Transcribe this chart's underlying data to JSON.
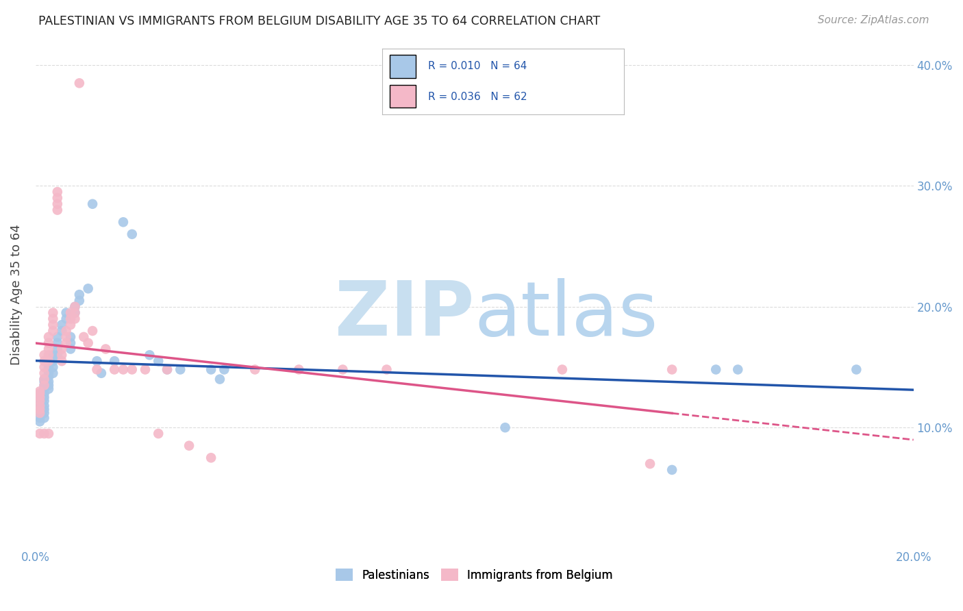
{
  "title": "PALESTINIAN VS IMMIGRANTS FROM BELGIUM DISABILITY AGE 35 TO 64 CORRELATION CHART",
  "source": "Source: ZipAtlas.com",
  "ylabel": "Disability Age 35 to 64",
  "xlim": [
    0.0,
    0.2
  ],
  "ylim": [
    0.0,
    0.42
  ],
  "xtick_vals": [
    0.0,
    0.05,
    0.1,
    0.15,
    0.2
  ],
  "xtick_labels": [
    "0.0%",
    "",
    "",
    "",
    "20.0%"
  ],
  "ytick_vals": [
    0.1,
    0.2,
    0.3,
    0.4
  ],
  "ytick_labels": [
    "10.0%",
    "20.0%",
    "30.0%",
    "40.0%"
  ],
  "legend_labels": [
    "Palestinians",
    "Immigrants from Belgium"
  ],
  "blue_color": "#a8c8e8",
  "pink_color": "#f4b8c8",
  "blue_line_color": "#2255aa",
  "pink_line_color": "#dd5588",
  "tick_color": "#6699cc",
  "watermark_zip_color": "#c8dff0",
  "watermark_atlas_color": "#b8d5ee",
  "grid_color": "#cccccc",
  "palestinians_x": [
    0.001,
    0.001,
    0.001,
    0.001,
    0.001,
    0.001,
    0.001,
    0.001,
    0.002,
    0.002,
    0.002,
    0.002,
    0.002,
    0.002,
    0.002,
    0.002,
    0.002,
    0.002,
    0.002,
    0.003,
    0.003,
    0.003,
    0.003,
    0.003,
    0.003,
    0.003,
    0.004,
    0.004,
    0.004,
    0.004,
    0.005,
    0.005,
    0.005,
    0.005,
    0.006,
    0.006,
    0.007,
    0.007,
    0.008,
    0.008,
    0.008,
    0.009,
    0.009,
    0.01,
    0.01,
    0.012,
    0.013,
    0.014,
    0.015,
    0.018,
    0.02,
    0.022,
    0.026,
    0.028,
    0.03,
    0.033,
    0.04,
    0.042,
    0.043,
    0.107,
    0.145,
    0.155,
    0.16,
    0.187
  ],
  "palestinians_y": [
    0.125,
    0.128,
    0.12,
    0.118,
    0.115,
    0.112,
    0.108,
    0.105,
    0.14,
    0.138,
    0.135,
    0.132,
    0.128,
    0.125,
    0.122,
    0.118,
    0.115,
    0.112,
    0.108,
    0.15,
    0.148,
    0.145,
    0.142,
    0.138,
    0.135,
    0.132,
    0.16,
    0.155,
    0.15,
    0.145,
    0.175,
    0.17,
    0.165,
    0.16,
    0.185,
    0.18,
    0.195,
    0.19,
    0.175,
    0.17,
    0.165,
    0.2,
    0.195,
    0.21,
    0.205,
    0.215,
    0.285,
    0.155,
    0.145,
    0.155,
    0.27,
    0.26,
    0.16,
    0.155,
    0.148,
    0.148,
    0.148,
    0.14,
    0.148,
    0.1,
    0.065,
    0.148,
    0.148,
    0.148
  ],
  "belgium_x": [
    0.001,
    0.001,
    0.001,
    0.001,
    0.001,
    0.001,
    0.001,
    0.001,
    0.002,
    0.002,
    0.002,
    0.002,
    0.002,
    0.002,
    0.002,
    0.003,
    0.003,
    0.003,
    0.003,
    0.003,
    0.003,
    0.004,
    0.004,
    0.004,
    0.004,
    0.005,
    0.005,
    0.005,
    0.005,
    0.006,
    0.006,
    0.006,
    0.007,
    0.007,
    0.007,
    0.008,
    0.008,
    0.008,
    0.009,
    0.009,
    0.009,
    0.01,
    0.011,
    0.012,
    0.013,
    0.014,
    0.016,
    0.018,
    0.02,
    0.022,
    0.025,
    0.028,
    0.03,
    0.035,
    0.04,
    0.05,
    0.06,
    0.07,
    0.08,
    0.12,
    0.14,
    0.145
  ],
  "belgium_y": [
    0.13,
    0.128,
    0.125,
    0.122,
    0.118,
    0.115,
    0.112,
    0.095,
    0.16,
    0.155,
    0.15,
    0.145,
    0.14,
    0.135,
    0.095,
    0.175,
    0.17,
    0.165,
    0.16,
    0.155,
    0.095,
    0.195,
    0.19,
    0.185,
    0.18,
    0.295,
    0.29,
    0.285,
    0.28,
    0.165,
    0.16,
    0.155,
    0.18,
    0.175,
    0.17,
    0.195,
    0.19,
    0.185,
    0.2,
    0.195,
    0.19,
    0.385,
    0.175,
    0.17,
    0.18,
    0.148,
    0.165,
    0.148,
    0.148,
    0.148,
    0.148,
    0.095,
    0.148,
    0.085,
    0.075,
    0.148,
    0.148,
    0.148,
    0.148,
    0.148,
    0.07,
    0.148
  ]
}
